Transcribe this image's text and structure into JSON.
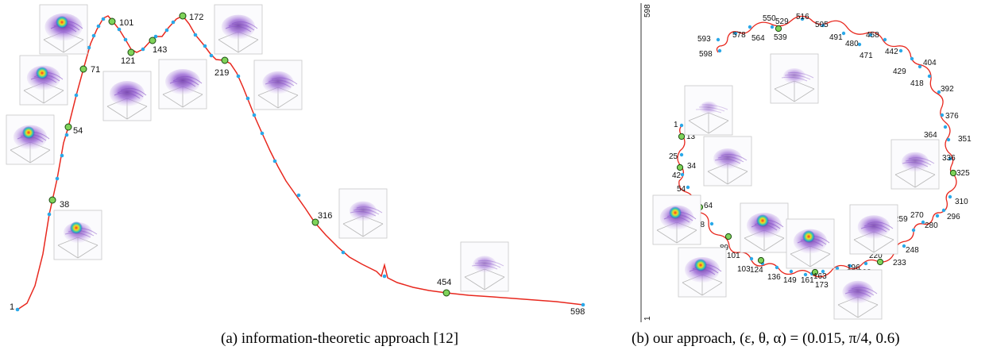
{
  "panel_a": {
    "caption": "(a) information-theoretic approach [12]",
    "labels": [
      "1",
      "38",
      "54",
      "71",
      "101",
      "121",
      "143",
      "172",
      "219",
      "316",
      "454",
      "598"
    ]
  },
  "panel_b": {
    "caption": "(b) our approach, (ε, θ, α) = (0.015, π/4, 0.6)",
    "labels": [
      "1",
      "13",
      "25",
      "34",
      "42",
      "54",
      "64",
      "78",
      "89",
      "101",
      "103",
      "124",
      "136",
      "149",
      "161",
      "163",
      "173",
      "196",
      "208",
      "220",
      "233",
      "248",
      "259",
      "270",
      "280",
      "296",
      "310",
      "325",
      "336",
      "351",
      "364",
      "376",
      "392",
      "404",
      "418",
      "429",
      "442",
      "458",
      "471",
      "480",
      "491",
      "505",
      "516",
      "529",
      "539",
      "550",
      "564",
      "578",
      "593",
      "598"
    ],
    "axis_top": "598",
    "axis_bottom": "1"
  },
  "colors": {
    "curve": "#e8281e",
    "sample_dot": "#2aa8e8",
    "key_dot": "#7fd35a",
    "render_purple": "#8a55c8"
  }
}
